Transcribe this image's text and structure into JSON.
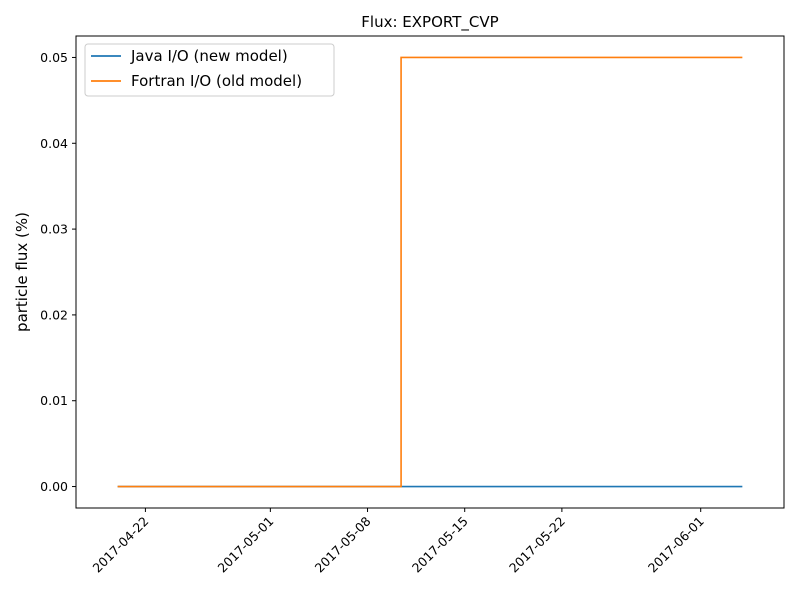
{
  "chart_data": {
    "type": "line",
    "title": "Flux: EXPORT_CVP",
    "xlabel": "",
    "ylabel": "particle flux (%)",
    "x_ticks": [
      "2017-04-22",
      "2017-05-01",
      "2017-05-08",
      "2017-05-15",
      "2017-05-22",
      "2017-06-01"
    ],
    "y_ticks": [
      "0.00",
      "0.01",
      "0.02",
      "0.03",
      "0.04",
      "0.05"
    ],
    "xlim": [
      "2017-04-17",
      "2017-06-07"
    ],
    "ylim": [
      -0.0025,
      0.0525
    ],
    "legend_position": "top-left",
    "grid": false,
    "series": [
      {
        "name": "Java I/O (new model)",
        "color": "#1f77b4",
        "step": true,
        "points": [
          {
            "x": "2017-04-20",
            "y": 0.0
          },
          {
            "x": "2017-06-04",
            "y": 0.0
          }
        ]
      },
      {
        "name": "Fortran I/O (old model)",
        "color": "#ff7f0e",
        "step": true,
        "points": [
          {
            "x": "2017-04-20",
            "y": 0.0
          },
          {
            "x": "2017-05-10 10:00",
            "y": 0.0
          },
          {
            "x": "2017-05-10 10:00",
            "y": 0.05
          },
          {
            "x": "2017-06-04",
            "y": 0.05
          }
        ]
      }
    ]
  }
}
